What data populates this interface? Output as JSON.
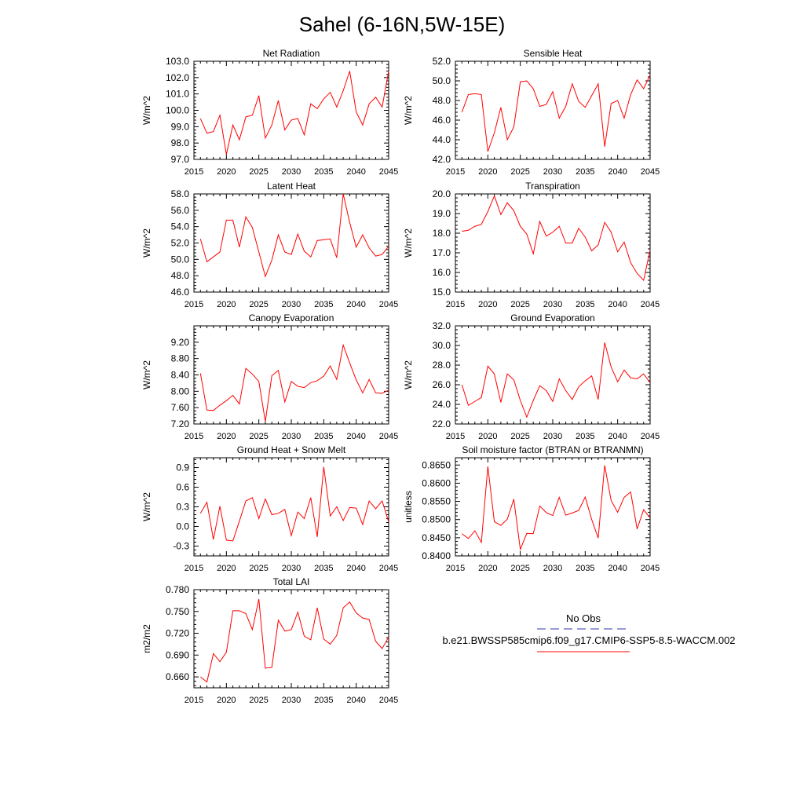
{
  "figure": {
    "title": "Sahel (6-16N,5W-15E)"
  },
  "legend": {
    "obs_label": "No Obs",
    "obs_color": "#3333aa",
    "model_label": "b.e21.BWSSP585cmip6.f09_g17.CMIP6-SSP5-8.5-WACCM.002",
    "model_color": "#ff0000"
  },
  "chart_data": [
    {
      "type": "line",
      "title": "Net Radiation",
      "ylabel": "W/m^2",
      "xlim": [
        2015,
        2045
      ],
      "ylim": [
        97,
        103
      ],
      "xticks": [
        2015,
        2020,
        2025,
        2030,
        2035,
        2040,
        2045
      ],
      "yticks": [
        97,
        98,
        99,
        100,
        101,
        102,
        103
      ],
      "ytick_labels": [
        "97.0",
        "98.0",
        "99.0",
        "100.0",
        "101.0",
        "102.0",
        "103.0"
      ],
      "x": [
        2016,
        2017,
        2018,
        2019,
        2020,
        2021,
        2022,
        2023,
        2024,
        2025,
        2026,
        2027,
        2028,
        2029,
        2030,
        2031,
        2032,
        2033,
        2034,
        2035,
        2036,
        2037,
        2038,
        2039,
        2040,
        2041,
        2042,
        2043,
        2044,
        2045
      ],
      "series": [
        {
          "name": "b.e21.BWSSP585cmip6.f09_g17.CMIP6-SSP5-8.5-WACCM.002",
          "values": [
            99.5,
            98.6,
            98.7,
            99.7,
            97.3,
            99.1,
            98.2,
            99.6,
            99.7,
            100.9,
            98.3,
            99.1,
            100.6,
            98.8,
            99.4,
            99.5,
            98.5,
            100.4,
            100.1,
            100.7,
            101.1,
            100.2,
            101.2,
            102.4,
            99.9,
            99.1,
            100.4,
            100.8,
            100.2,
            102.4
          ]
        }
      ]
    },
    {
      "type": "line",
      "title": "Sensible Heat",
      "ylabel": "W/m^2",
      "xlim": [
        2015,
        2045
      ],
      "ylim": [
        42,
        52
      ],
      "xticks": [
        2015,
        2020,
        2025,
        2030,
        2035,
        2040,
        2045
      ],
      "yticks": [
        42,
        44,
        46,
        48,
        50,
        52
      ],
      "ytick_labels": [
        "42.0",
        "44.0",
        "46.0",
        "48.0",
        "50.0",
        "52.0"
      ],
      "x": [
        2016,
        2017,
        2018,
        2019,
        2020,
        2021,
        2022,
        2023,
        2024,
        2025,
        2026,
        2027,
        2028,
        2029,
        2030,
        2031,
        2032,
        2033,
        2034,
        2035,
        2036,
        2037,
        2038,
        2039,
        2040,
        2041,
        2042,
        2043,
        2044,
        2045
      ],
      "series": [
        {
          "name": "b.e21.BWSSP585cmip6.f09_g17.CMIP6-SSP5-8.5-WACCM.002",
          "values": [
            46.8,
            48.6,
            48.7,
            48.6,
            42.8,
            44.7,
            47.3,
            44.0,
            45.3,
            49.9,
            50.0,
            49.2,
            47.4,
            47.6,
            48.9,
            46.2,
            47.4,
            49.7,
            47.9,
            47.3,
            48.5,
            49.7,
            43.3,
            47.7,
            48.0,
            46.2,
            48.6,
            50.1,
            49.2,
            50.6
          ]
        }
      ]
    },
    {
      "type": "line",
      "title": "Latent Heat",
      "ylabel": "W/m^2",
      "xlim": [
        2015,
        2045
      ],
      "ylim": [
        46,
        58
      ],
      "xticks": [
        2015,
        2020,
        2025,
        2030,
        2035,
        2040,
        2045
      ],
      "yticks": [
        46,
        48,
        50,
        52,
        54,
        56,
        58
      ],
      "ytick_labels": [
        "46.0",
        "48.0",
        "50.0",
        "52.0",
        "54.0",
        "56.0",
        "58.0"
      ],
      "x": [
        2016,
        2017,
        2018,
        2019,
        2020,
        2021,
        2022,
        2023,
        2024,
        2025,
        2026,
        2027,
        2028,
        2029,
        2030,
        2031,
        2032,
        2033,
        2034,
        2035,
        2036,
        2037,
        2038,
        2039,
        2040,
        2041,
        2042,
        2043,
        2044,
        2045
      ],
      "series": [
        {
          "name": "b.e21.BWSSP585cmip6.f09_g17.CMIP6-SSP5-8.5-WACCM.002",
          "values": [
            52.5,
            49.7,
            50.3,
            50.9,
            54.8,
            54.8,
            51.5,
            55.2,
            53.9,
            50.9,
            47.9,
            49.9,
            53.0,
            50.9,
            50.6,
            53.1,
            51.0,
            50.3,
            52.3,
            52.4,
            52.5,
            50.2,
            58.0,
            54.5,
            51.5,
            53.0,
            51.4,
            50.4,
            50.6,
            51.6
          ]
        }
      ]
    },
    {
      "type": "line",
      "title": "Transpiration",
      "ylabel": "W/m^2",
      "xlim": [
        2015,
        2045
      ],
      "ylim": [
        15,
        20
      ],
      "xticks": [
        2015,
        2020,
        2025,
        2030,
        2035,
        2040,
        2045
      ],
      "yticks": [
        15,
        16,
        17,
        18,
        19,
        20
      ],
      "ytick_labels": [
        "15.0",
        "16.0",
        "17.0",
        "18.0",
        "19.0",
        "20.0"
      ],
      "x": [
        2016,
        2017,
        2018,
        2019,
        2020,
        2021,
        2022,
        2023,
        2024,
        2025,
        2026,
        2027,
        2028,
        2029,
        2030,
        2031,
        2032,
        2033,
        2034,
        2035,
        2036,
        2037,
        2038,
        2039,
        2040,
        2041,
        2042,
        2043,
        2044,
        2045
      ],
      "series": [
        {
          "name": "b.e21.BWSSP585cmip6.f09_g17.CMIP6-SSP5-8.5-WACCM.002",
          "values": [
            18.1,
            18.15,
            18.35,
            18.45,
            19.1,
            19.9,
            18.95,
            19.55,
            19.15,
            18.35,
            17.95,
            16.95,
            18.6,
            17.85,
            18.05,
            18.35,
            17.5,
            17.5,
            18.25,
            17.8,
            17.1,
            17.4,
            18.55,
            18.05,
            17.05,
            17.55,
            16.5,
            15.95,
            15.6,
            17.15
          ]
        }
      ]
    },
    {
      "type": "line",
      "title": "Canopy Evaporation",
      "ylabel": "W/m^2",
      "xlim": [
        2015,
        2045
      ],
      "ylim": [
        7.2,
        9.6
      ],
      "xticks": [
        2015,
        2020,
        2025,
        2030,
        2035,
        2040,
        2045
      ],
      "yticks": [
        7.2,
        7.6,
        8.0,
        8.4,
        8.8,
        9.2
      ],
      "ytick_labels": [
        "7.20",
        "7.60",
        "8.00",
        "8.40",
        "8.80",
        "9.20"
      ],
      "x": [
        2016,
        2017,
        2018,
        2019,
        2020,
        2021,
        2022,
        2023,
        2024,
        2025,
        2026,
        2027,
        2028,
        2029,
        2030,
        2031,
        2032,
        2033,
        2034,
        2035,
        2036,
        2037,
        2038,
        2039,
        2040,
        2041,
        2042,
        2043,
        2044,
        2045
      ],
      "series": [
        {
          "name": "b.e21.BWSSP585cmip6.f09_g17.CMIP6-SSP5-8.5-WACCM.002",
          "values": [
            8.44,
            7.54,
            7.53,
            7.66,
            7.77,
            7.9,
            7.69,
            8.56,
            8.42,
            8.24,
            7.26,
            8.38,
            8.51,
            7.74,
            8.24,
            8.12,
            8.09,
            8.21,
            8.26,
            8.37,
            8.62,
            8.29,
            9.13,
            8.69,
            8.28,
            7.96,
            8.29,
            7.96,
            7.95,
            8.03
          ]
        }
      ]
    },
    {
      "type": "line",
      "title": "Ground Evaporation",
      "ylabel": "W/m^2",
      "xlim": [
        2015,
        2045
      ],
      "ylim": [
        22,
        32
      ],
      "xticks": [
        2015,
        2020,
        2025,
        2030,
        2035,
        2040,
        2045
      ],
      "yticks": [
        22,
        24,
        26,
        28,
        30,
        32
      ],
      "ytick_labels": [
        "22.0",
        "24.0",
        "26.0",
        "28.0",
        "30.0",
        "32.0"
      ],
      "x": [
        2016,
        2017,
        2018,
        2019,
        2020,
        2021,
        2022,
        2023,
        2024,
        2025,
        2026,
        2027,
        2028,
        2029,
        2030,
        2031,
        2032,
        2033,
        2034,
        2035,
        2036,
        2037,
        2038,
        2039,
        2040,
        2041,
        2042,
        2043,
        2044,
        2045
      ],
      "series": [
        {
          "name": "b.e21.BWSSP585cmip6.f09_g17.CMIP6-SSP5-8.5-WACCM.002",
          "values": [
            26.0,
            23.9,
            24.3,
            24.7,
            27.9,
            27.1,
            24.2,
            27.1,
            26.5,
            24.4,
            22.7,
            24.4,
            25.9,
            25.4,
            24.3,
            26.6,
            25.4,
            24.5,
            25.8,
            26.4,
            26.9,
            24.5,
            30.3,
            27.8,
            26.3,
            27.5,
            26.7,
            26.6,
            27.1,
            26.2
          ]
        }
      ]
    },
    {
      "type": "line",
      "title": "Ground Heat + Snow Melt",
      "ylabel": "W/m^2",
      "xlim": [
        2015,
        2045
      ],
      "ylim": [
        -0.45,
        1.05
      ],
      "xticks": [
        2015,
        2020,
        2025,
        2030,
        2035,
        2040,
        2045
      ],
      "yticks": [
        -0.3,
        0.0,
        0.3,
        0.6,
        0.9
      ],
      "ytick_labels": [
        "-0.3",
        "0.0",
        "0.3",
        "0.6",
        "0.9"
      ],
      "x": [
        2016,
        2017,
        2018,
        2019,
        2020,
        2021,
        2022,
        2023,
        2024,
        2025,
        2026,
        2027,
        2028,
        2029,
        2030,
        2031,
        2032,
        2033,
        2034,
        2035,
        2036,
        2037,
        2038,
        2039,
        2040,
        2041,
        2042,
        2043,
        2044,
        2045
      ],
      "series": [
        {
          "name": "b.e21.BWSSP585cmip6.f09_g17.CMIP6-SSP5-8.5-WACCM.002",
          "values": [
            0.2,
            0.37,
            -0.2,
            0.31,
            -0.21,
            -0.22,
            0.08,
            0.39,
            0.44,
            0.12,
            0.42,
            0.18,
            0.2,
            0.26,
            -0.14,
            0.22,
            0.12,
            0.44,
            -0.16,
            0.91,
            0.16,
            0.3,
            0.09,
            0.29,
            0.28,
            0.03,
            0.39,
            0.27,
            0.39,
            0.07
          ]
        }
      ]
    },
    {
      "type": "line",
      "title": "Soil moisture factor (BTRAN or BTRANMN)",
      "ylabel": "unitless",
      "xlim": [
        2015,
        2045
      ],
      "ylim": [
        0.84,
        0.867
      ],
      "xticks": [
        2015,
        2020,
        2025,
        2030,
        2035,
        2040,
        2045
      ],
      "yticks": [
        0.84,
        0.845,
        0.85,
        0.855,
        0.86,
        0.865
      ],
      "ytick_labels": [
        "0.8400",
        "0.8450",
        "0.8500",
        "0.8550",
        "0.8600",
        "0.8650"
      ],
      "x": [
        2016,
        2017,
        2018,
        2019,
        2020,
        2021,
        2022,
        2023,
        2024,
        2025,
        2026,
        2027,
        2028,
        2029,
        2030,
        2031,
        2032,
        2033,
        2034,
        2035,
        2036,
        2037,
        2038,
        2039,
        2040,
        2041,
        2042,
        2043,
        2044,
        2045
      ],
      "series": [
        {
          "name": "b.e21.BWSSP585cmip6.f09_g17.CMIP6-SSP5-8.5-WACCM.002",
          "values": [
            0.8461,
            0.8448,
            0.8469,
            0.8437,
            0.8646,
            0.8494,
            0.8484,
            0.8501,
            0.8556,
            0.8418,
            0.8462,
            0.8461,
            0.8537,
            0.8519,
            0.8511,
            0.8561,
            0.8512,
            0.8518,
            0.8525,
            0.8562,
            0.85,
            0.8449,
            0.8649,
            0.8552,
            0.852,
            0.8561,
            0.8576,
            0.8474,
            0.8527,
            0.8505
          ]
        }
      ]
    },
    {
      "type": "line",
      "title": "Total LAI",
      "ylabel": "m2/m2",
      "xlim": [
        2015,
        2045
      ],
      "ylim": [
        0.645,
        0.78
      ],
      "xticks": [
        2015,
        2020,
        2025,
        2030,
        2035,
        2040,
        2045
      ],
      "yticks": [
        0.66,
        0.69,
        0.72,
        0.75,
        0.78
      ],
      "ytick_labels": [
        "0.660",
        "0.690",
        "0.720",
        "0.750",
        "0.780"
      ],
      "x": [
        2016,
        2017,
        2018,
        2019,
        2020,
        2021,
        2022,
        2023,
        2024,
        2025,
        2026,
        2027,
        2028,
        2029,
        2030,
        2031,
        2032,
        2033,
        2034,
        2035,
        2036,
        2037,
        2038,
        2039,
        2040,
        2041,
        2042,
        2043,
        2044,
        2045
      ],
      "series": [
        {
          "name": "b.e21.BWSSP585cmip6.f09_g17.CMIP6-SSP5-8.5-WACCM.002",
          "values": [
            0.66,
            0.653,
            0.692,
            0.681,
            0.694,
            0.751,
            0.751,
            0.747,
            0.725,
            0.767,
            0.672,
            0.673,
            0.738,
            0.723,
            0.725,
            0.749,
            0.716,
            0.711,
            0.755,
            0.712,
            0.705,
            0.717,
            0.755,
            0.763,
            0.748,
            0.741,
            0.739,
            0.709,
            0.699,
            0.715
          ]
        }
      ]
    }
  ]
}
